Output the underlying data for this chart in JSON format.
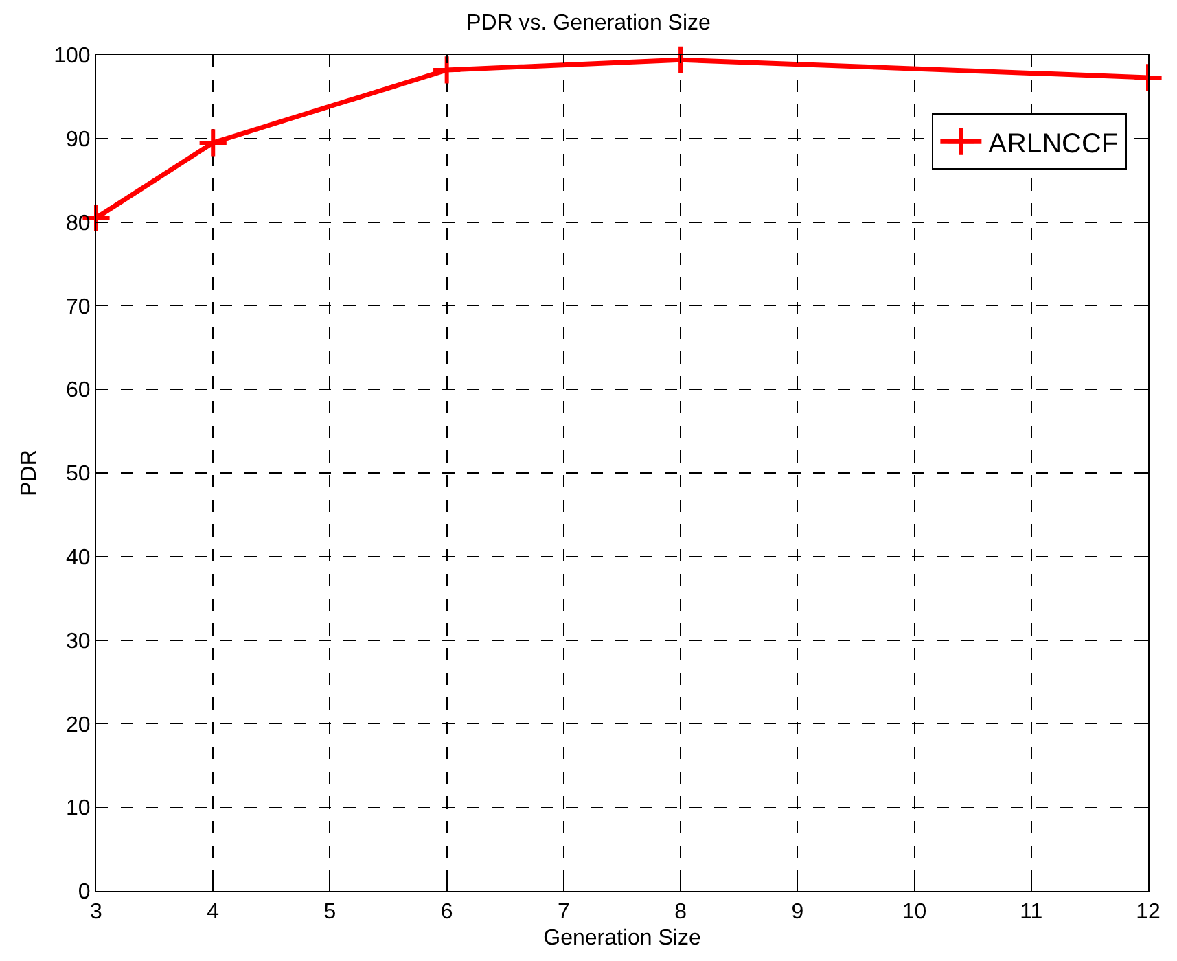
{
  "chart_data": {
    "type": "line",
    "title": "PDR vs. Generation Size",
    "xlabel": "Generation Size",
    "ylabel": "PDR",
    "x": [
      3,
      4,
      6,
      8,
      12
    ],
    "series": [
      {
        "name": "ARLNCCF",
        "color": "#ff0000",
        "values": [
          80.5,
          89.5,
          98.2,
          99.4,
          97.3
        ]
      }
    ],
    "xlim": [
      3,
      12
    ],
    "xticks": [
      3,
      4,
      5,
      6,
      7,
      8,
      9,
      10,
      11,
      12
    ],
    "ylim": [
      0,
      100
    ],
    "yticks": [
      0,
      10,
      20,
      30,
      40,
      50,
      60,
      70,
      80,
      90,
      100
    ],
    "grid": true,
    "legend": "top right",
    "marker": "cross",
    "line_style": "solid"
  }
}
